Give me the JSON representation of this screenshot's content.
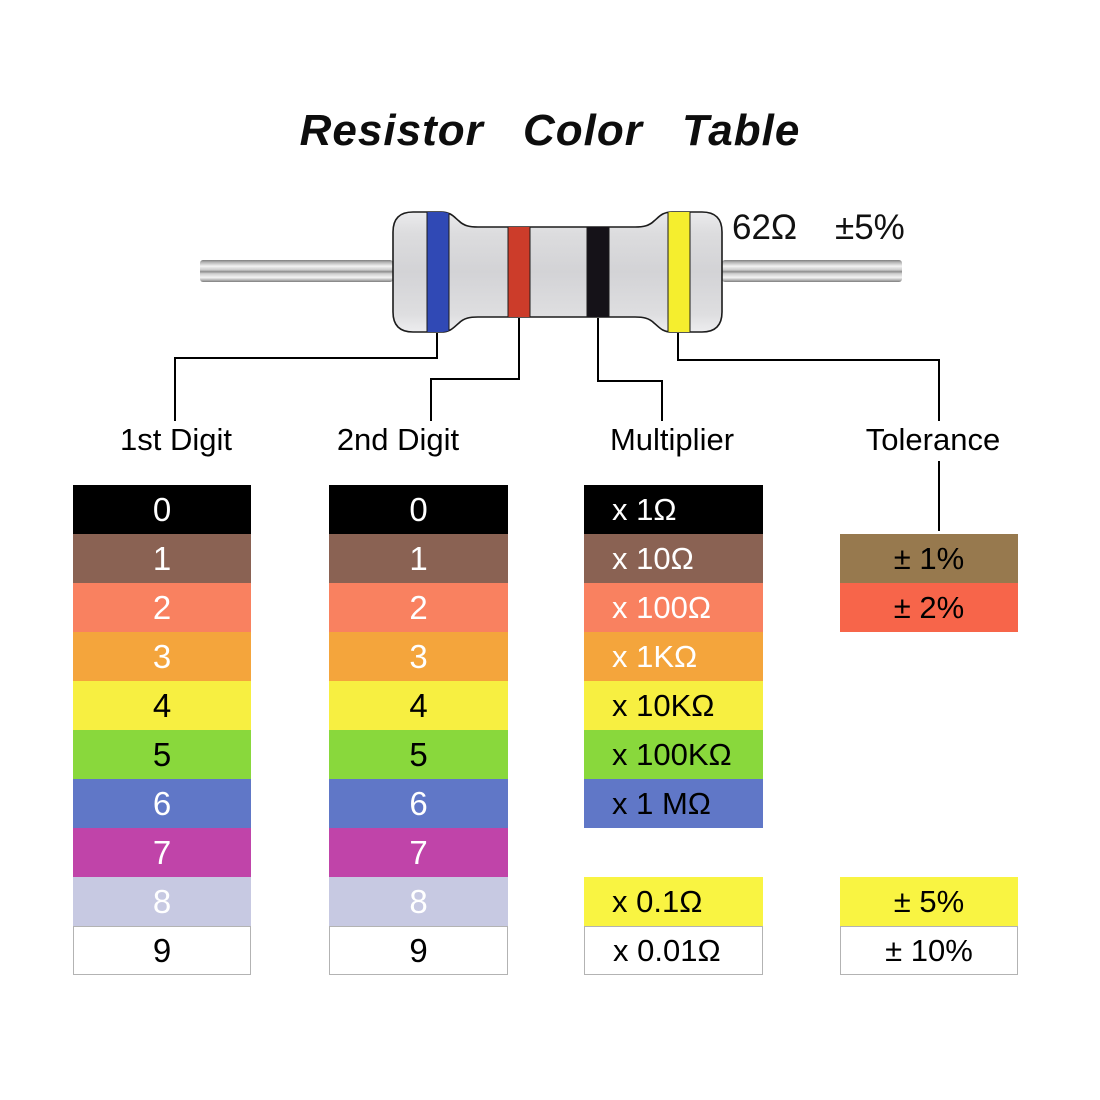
{
  "title": "Resistor Color Table",
  "resistor": {
    "value_label": "62Ω",
    "tolerance_label": "±5%",
    "body_color": "#d5d5d8",
    "bands": [
      {
        "name": "blue-band",
        "hex": "#3049B5"
      },
      {
        "name": "red-band",
        "hex": "#CC3C2A"
      },
      {
        "name": "black-band",
        "hex": "#151218"
      },
      {
        "name": "yellow-band",
        "hex": "#F5EE2E"
      }
    ]
  },
  "columns": [
    {
      "header": "1st Digit",
      "align": "center",
      "rows": [
        {
          "slot": 0,
          "label": "0",
          "bg": "#000000",
          "fg": "#FFFFFF"
        },
        {
          "slot": 1,
          "label": "1",
          "bg": "#8A6253",
          "fg": "#FFFFFF"
        },
        {
          "slot": 2,
          "label": "2",
          "bg": "#F98160",
          "fg": "#FFFFFF"
        },
        {
          "slot": 3,
          "label": "3",
          "bg": "#F4A53C",
          "fg": "#FFFFFF"
        },
        {
          "slot": 4,
          "label": "4",
          "bg": "#F7EF41",
          "fg": "#000000"
        },
        {
          "slot": 5,
          "label": "5",
          "bg": "#89D83C",
          "fg": "#000000"
        },
        {
          "slot": 6,
          "label": "6",
          "bg": "#6077C7",
          "fg": "#FFFFFF"
        },
        {
          "slot": 7,
          "label": "7",
          "bg": "#C044A9",
          "fg": "#FFFFFF"
        },
        {
          "slot": 8,
          "label": "8",
          "bg": "#C7C9E2",
          "fg": "#FFFFFF"
        },
        {
          "slot": 9,
          "label": "9",
          "bg": "#FFFFFF",
          "fg": "#000000",
          "bordered": true
        }
      ]
    },
    {
      "header": "2nd Digit",
      "align": "center",
      "rows": [
        {
          "slot": 0,
          "label": "0",
          "bg": "#000000",
          "fg": "#FFFFFF"
        },
        {
          "slot": 1,
          "label": "1",
          "bg": "#8A6253",
          "fg": "#FFFFFF"
        },
        {
          "slot": 2,
          "label": "2",
          "bg": "#F98160",
          "fg": "#FFFFFF"
        },
        {
          "slot": 3,
          "label": "3",
          "bg": "#F4A53C",
          "fg": "#FFFFFF"
        },
        {
          "slot": 4,
          "label": "4",
          "bg": "#F7EF41",
          "fg": "#000000"
        },
        {
          "slot": 5,
          "label": "5",
          "bg": "#89D83C",
          "fg": "#000000"
        },
        {
          "slot": 6,
          "label": "6",
          "bg": "#6077C7",
          "fg": "#FFFFFF"
        },
        {
          "slot": 7,
          "label": "7",
          "bg": "#C044A9",
          "fg": "#FFFFFF"
        },
        {
          "slot": 8,
          "label": "8",
          "bg": "#C7C9E2",
          "fg": "#FFFFFF"
        },
        {
          "slot": 9,
          "label": "9",
          "bg": "#FFFFFF",
          "fg": "#000000",
          "bordered": true
        }
      ]
    },
    {
      "header": "Multiplier",
      "align": "left",
      "rows": [
        {
          "slot": 0,
          "label": "x 1Ω",
          "bg": "#000000",
          "fg": "#FFFFFF"
        },
        {
          "slot": 1,
          "label": "x 10Ω",
          "bg": "#8A6253",
          "fg": "#FFFFFF"
        },
        {
          "slot": 2,
          "label": "x 100Ω",
          "bg": "#F98160",
          "fg": "#FFFFFF"
        },
        {
          "slot": 3,
          "label": "x 1KΩ",
          "bg": "#F4A53C",
          "fg": "#FFFFFF"
        },
        {
          "slot": 4,
          "label": "x 10KΩ",
          "bg": "#F7EF41",
          "fg": "#000000"
        },
        {
          "slot": 5,
          "label": "x 100KΩ",
          "bg": "#89D83C",
          "fg": "#000000"
        },
        {
          "slot": 6,
          "label": "x 1 MΩ",
          "bg": "#6077C7",
          "fg": "#000000"
        },
        {
          "slot": 8,
          "label": "x 0.1Ω",
          "bg": "#F9F442",
          "fg": "#000000"
        },
        {
          "slot": 9,
          "label": "x 0.01Ω",
          "bg": "#FFFFFF",
          "fg": "#000000",
          "bordered": true
        }
      ]
    },
    {
      "header": "Tolerance",
      "align": "center",
      "rows": [
        {
          "slot": 1,
          "label": "± 1%",
          "bg": "#97794E",
          "fg": "#000000"
        },
        {
          "slot": 2,
          "label": "± 2%",
          "bg": "#F7654A",
          "fg": "#000000"
        },
        {
          "slot": 8,
          "label": "± 5%",
          "bg": "#F9F442",
          "fg": "#000000"
        },
        {
          "slot": 9,
          "label": "± 10%",
          "bg": "#FFFFFF",
          "fg": "#000000",
          "bordered": true
        }
      ]
    }
  ]
}
